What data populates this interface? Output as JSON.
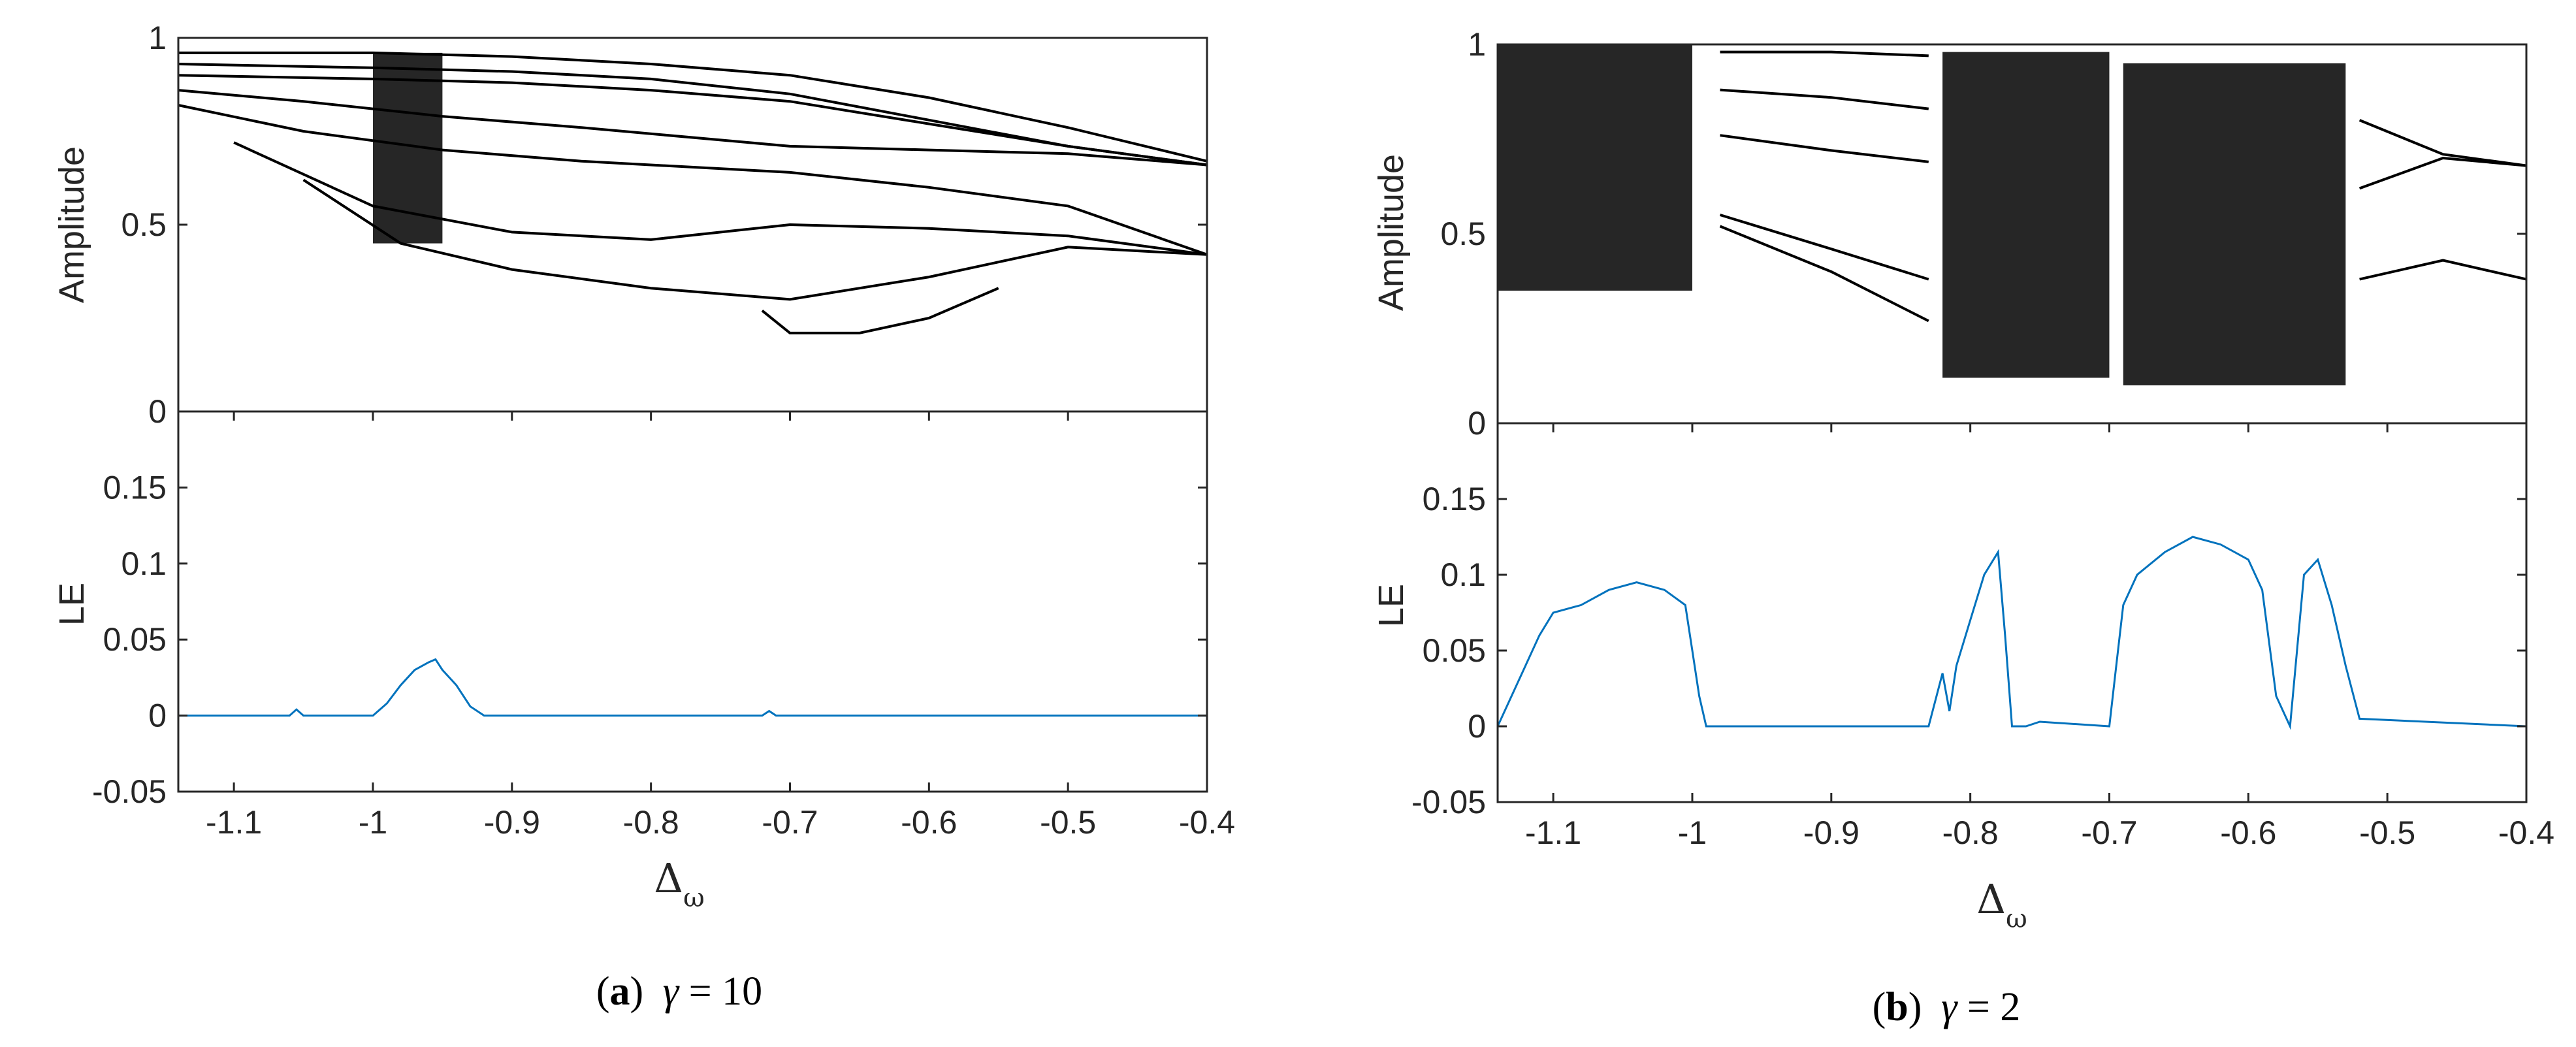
{
  "colors": {
    "axis": "#262626",
    "bifurcation": "#000000",
    "lyapunov": "#0072BD",
    "background": "#ffffff"
  },
  "panels": [
    {
      "caption": {
        "letter": "a",
        "open": "(",
        "close": ")",
        "gamma": "γ",
        "eq": " = 10"
      },
      "xlabel": {
        "symbol": "Δ",
        "sub": "ω"
      }
    },
    {
      "caption": {
        "letter": "b",
        "open": "(",
        "close": ")",
        "gamma": "γ",
        "eq": " = 2"
      },
      "xlabel": {
        "symbol": "Δ",
        "sub": "ω"
      }
    }
  ],
  "chart_data": [
    {
      "type": "scatter",
      "panel": "a-top",
      "ylabel": "Amplitude",
      "xlim": [
        -1.14,
        -0.4
      ],
      "ylim": [
        0,
        1
      ],
      "yticks": [
        0,
        0.5,
        1
      ],
      "ytick_labels": [
        "0",
        "0.5",
        "1"
      ],
      "xticks_shown": false,
      "series": [
        {
          "branches": [
            {
              "x": [
                -1.14,
                -1.0,
                -0.9,
                -0.8,
                -0.7,
                -0.6,
                -0.5,
                -0.4
              ],
              "y": [
                0.96,
                0.96,
                0.95,
                0.93,
                0.9,
                0.84,
                0.76,
                0.67
              ]
            },
            {
              "x": [
                -1.14,
                -1.0,
                -0.9,
                -0.8,
                -0.7,
                -0.6,
                -0.5,
                -0.4
              ],
              "y": [
                0.93,
                0.92,
                0.91,
                0.89,
                0.85,
                0.78,
                0.71,
                0.66
              ]
            },
            {
              "x": [
                -1.14,
                -1.0,
                -0.9,
                -0.8,
                -0.7,
                -0.6,
                -0.5,
                -0.4
              ],
              "y": [
                0.9,
                0.89,
                0.88,
                0.86,
                0.83,
                0.77,
                0.71,
                0.66
              ]
            },
            {
              "x": [
                -1.14,
                -1.05,
                -0.95,
                -0.85,
                -0.7,
                -0.6,
                -0.5,
                -0.4
              ],
              "y": [
                0.86,
                0.83,
                0.79,
                0.76,
                0.71,
                0.7,
                0.69,
                0.66
              ]
            },
            {
              "x": [
                -1.14,
                -1.05,
                -0.95,
                -0.85,
                -0.7,
                -0.6,
                -0.5,
                -0.4
              ],
              "y": [
                0.82,
                0.75,
                0.7,
                0.67,
                0.64,
                0.6,
                0.55,
                0.42
              ]
            },
            {
              "x": [
                -1.1,
                -1.0,
                -0.9,
                -0.8,
                -0.7,
                -0.6,
                -0.5,
                -0.4
              ],
              "y": [
                0.72,
                0.55,
                0.48,
                0.46,
                0.5,
                0.49,
                0.47,
                0.42
              ]
            },
            {
              "x": [
                -1.05,
                -0.98,
                -0.9,
                -0.8,
                -0.7,
                -0.6,
                -0.5,
                -0.4
              ],
              "y": [
                0.62,
                0.45,
                0.38,
                0.33,
                0.3,
                0.36,
                0.44,
                0.42
              ]
            },
            {
              "x": [
                -0.72,
                -0.7,
                -0.65,
                -0.6,
                -0.55
              ],
              "y": [
                0.27,
                0.21,
                0.21,
                0.25,
                0.33
              ]
            }
          ]
        }
      ],
      "chaotic_band": {
        "x_range": [
          -1.0,
          -0.95
        ],
        "y_range": [
          0.45,
          0.96
        ]
      }
    },
    {
      "type": "line",
      "panel": "a-bottom",
      "ylabel": "LE",
      "xlabel": "Δω",
      "xlim": [
        -1.14,
        -0.4
      ],
      "ylim": [
        -0.05,
        0.2
      ],
      "yticks": [
        -0.05,
        0,
        0.05,
        0.1,
        0.15
      ],
      "ytick_labels": [
        "-0.05",
        "0",
        "0.05",
        "0.1",
        "0.15"
      ],
      "xticks": [
        -1.1,
        -1,
        -0.9,
        -0.8,
        -0.7,
        -0.6,
        -0.5,
        -0.4
      ],
      "xtick_labels": [
        "-1.1",
        "-1",
        "-0.9",
        "-0.8",
        "-0.7",
        "-0.6",
        "-0.5",
        "-0.4"
      ],
      "series": [
        {
          "x": [
            -1.14,
            -1.06,
            -1.055,
            -1.05,
            -1.0,
            -0.99,
            -0.98,
            -0.97,
            -0.96,
            -0.955,
            -0.95,
            -0.94,
            -0.93,
            -0.92,
            -0.9,
            -0.8,
            -0.72,
            -0.715,
            -0.71,
            -0.6,
            -0.5,
            -0.4
          ],
          "y": [
            0,
            0,
            0.004,
            0,
            0,
            0.008,
            0.02,
            0.03,
            0.035,
            0.037,
            0.03,
            0.02,
            0.006,
            0,
            0,
            0,
            0,
            0.003,
            0,
            0,
            0,
            0
          ]
        }
      ]
    },
    {
      "type": "scatter",
      "panel": "b-top",
      "ylabel": "Amplitude",
      "xlim": [
        -1.14,
        -0.4
      ],
      "ylim": [
        0,
        1
      ],
      "yticks": [
        0,
        0.5,
        1
      ],
      "ytick_labels": [
        "0",
        "0.5",
        "1"
      ],
      "xticks_shown": false,
      "series": [
        {
          "branches": [
            {
              "x": [
                -0.98,
                -0.9,
                -0.83
              ],
              "y": [
                0.98,
                0.98,
                0.97
              ]
            },
            {
              "x": [
                -0.98,
                -0.9,
                -0.83
              ],
              "y": [
                0.88,
                0.86,
                0.83
              ]
            },
            {
              "x": [
                -0.98,
                -0.9,
                -0.83
              ],
              "y": [
                0.76,
                0.72,
                0.69
              ]
            },
            {
              "x": [
                -0.98,
                -0.9,
                -0.83
              ],
              "y": [
                0.55,
                0.46,
                0.38
              ]
            },
            {
              "x": [
                -0.98,
                -0.9,
                -0.83
              ],
              "y": [
                0.52,
                0.4,
                0.27
              ]
            },
            {
              "x": [
                -0.52,
                -0.46,
                -0.4
              ],
              "y": [
                0.8,
                0.71,
                0.68
              ]
            },
            {
              "x": [
                -0.52,
                -0.46,
                -0.4
              ],
              "y": [
                0.62,
                0.7,
                0.68
              ]
            },
            {
              "x": [
                -0.52,
                -0.46,
                -0.4
              ],
              "y": [
                0.38,
                0.43,
                0.38
              ]
            }
          ]
        }
      ],
      "chaotic_bands": [
        {
          "x_range": [
            -1.14,
            -1.0
          ],
          "y_range": [
            0.35,
            1.0
          ]
        },
        {
          "x_range": [
            -0.82,
            -0.7
          ],
          "y_range": [
            0.12,
            0.98
          ]
        },
        {
          "x_range": [
            -0.69,
            -0.53
          ],
          "y_range": [
            0.1,
            0.95
          ]
        }
      ]
    },
    {
      "type": "line",
      "panel": "b-bottom",
      "ylabel": "LE",
      "xlabel": "Δω",
      "xlim": [
        -1.14,
        -0.4
      ],
      "ylim": [
        -0.05,
        0.2
      ],
      "yticks": [
        -0.05,
        0,
        0.05,
        0.1,
        0.15
      ],
      "ytick_labels": [
        "-0.05",
        "0",
        "0.05",
        "0.1",
        "0.15"
      ],
      "xticks": [
        -1.1,
        -1,
        -0.9,
        -0.8,
        -0.7,
        -0.6,
        -0.5,
        -0.4
      ],
      "xtick_labels": [
        "-1.1",
        "-1",
        "-0.9",
        "-0.8",
        "-0.7",
        "-0.6",
        "-0.5",
        "-0.4"
      ],
      "series": [
        {
          "x": [
            -1.14,
            -1.13,
            -1.12,
            -1.11,
            -1.1,
            -1.08,
            -1.06,
            -1.04,
            -1.02,
            -1.005,
            -1.0,
            -0.995,
            -0.99,
            -0.9,
            -0.83,
            -0.82,
            -0.815,
            -0.81,
            -0.8,
            -0.79,
            -0.78,
            -0.775,
            -0.77,
            -0.76,
            -0.75,
            -0.7,
            -0.695,
            -0.69,
            -0.68,
            -0.66,
            -0.64,
            -0.62,
            -0.6,
            -0.59,
            -0.58,
            -0.57,
            -0.56,
            -0.55,
            -0.54,
            -0.53,
            -0.52,
            -0.4
          ],
          "y": [
            0,
            0.02,
            0.04,
            0.06,
            0.075,
            0.08,
            0.09,
            0.095,
            0.09,
            0.08,
            0.05,
            0.02,
            0,
            0,
            0,
            0.035,
            0.01,
            0.04,
            0.07,
            0.1,
            0.115,
            0.06,
            0,
            0,
            0.003,
            0,
            0.04,
            0.08,
            0.1,
            0.115,
            0.125,
            0.12,
            0.11,
            0.09,
            0.02,
            0,
            0.1,
            0.11,
            0.08,
            0.04,
            0.005,
            0
          ]
        }
      ]
    }
  ]
}
